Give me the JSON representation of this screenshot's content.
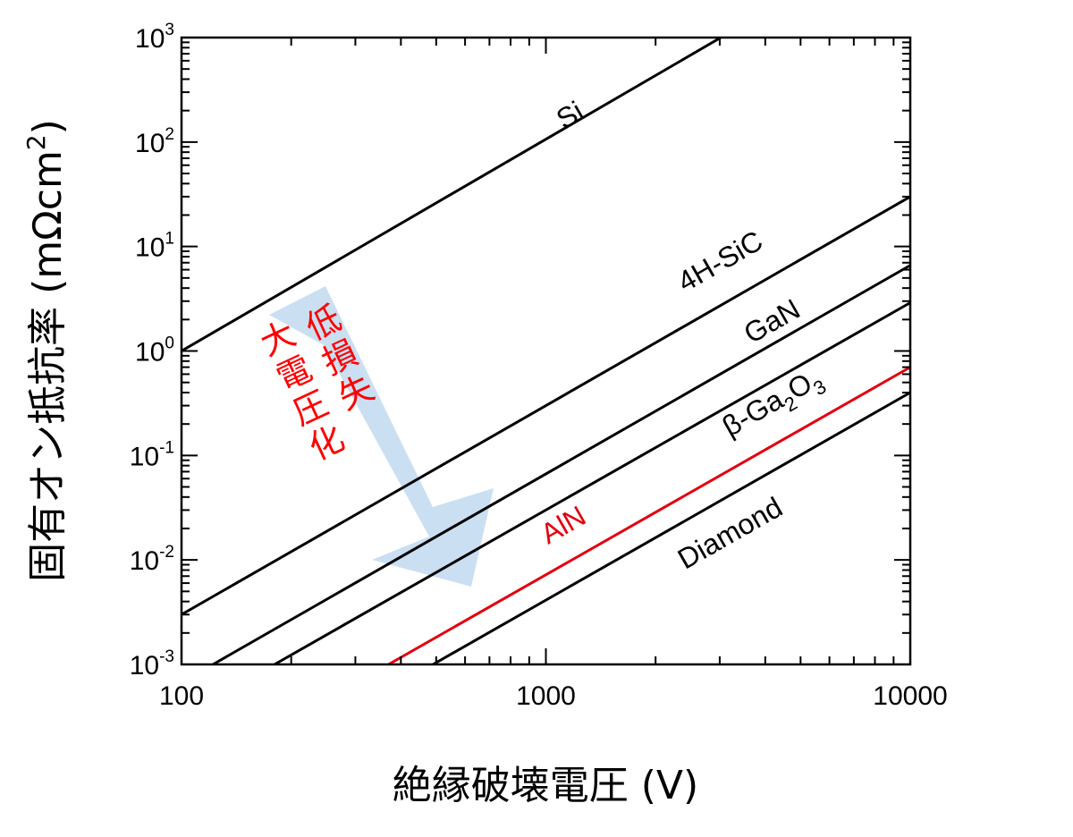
{
  "chart_data": {
    "type": "line",
    "title": "",
    "xlabel": "絶縁破壊電圧 (V)",
    "ylabel_main": "固有オン抵抗率 (mΩcm",
    "ylabel_sup": "2",
    "ylabel_close": ")",
    "xscale": "log",
    "yscale": "log",
    "xlim": [
      100,
      10000
    ],
    "ylim": [
      0.001,
      1000
    ],
    "grid": false,
    "x_ticks": [
      {
        "value": 100,
        "label": "100"
      },
      {
        "value": 1000,
        "label": "1000"
      },
      {
        "value": 10000,
        "label": "10000"
      }
    ],
    "y_ticks": [
      {
        "value": 0.001,
        "base": "10",
        "exp": "-3"
      },
      {
        "value": 0.01,
        "base": "10",
        "exp": "-2"
      },
      {
        "value": 0.1,
        "base": "10",
        "exp": "-1"
      },
      {
        "value": 1,
        "base": "10",
        "exp": "0"
      },
      {
        "value": 10,
        "base": "10",
        "exp": "1"
      },
      {
        "value": 100,
        "base": "10",
        "exp": "2"
      },
      {
        "value": 1000,
        "base": "10",
        "exp": "3"
      }
    ],
    "series": [
      {
        "name": "Si",
        "label_parts": [
          {
            "t": "Si"
          }
        ],
        "color": "#000000",
        "x": [
          100,
          3020
        ],
        "y": [
          1.0,
          1000
        ],
        "label_at": {
          "x": 1200,
          "y": 150
        }
      },
      {
        "name": "4H-SiC",
        "label_parts": [
          {
            "t": "4H-SiC"
          }
        ],
        "color": "#000000",
        "x": [
          100,
          10000
        ],
        "y": [
          0.003,
          30
        ],
        "label_at": {
          "x": 3100,
          "y": 6
        }
      },
      {
        "name": "GaN",
        "label_parts": [
          {
            "t": "GaN"
          }
        ],
        "color": "#000000",
        "x": [
          122,
          10000
        ],
        "y": [
          0.001,
          6.6
        ],
        "label_at": {
          "x": 4300,
          "y": 1.6
        }
      },
      {
        "name": "β-Ga2O3",
        "label_parts": [
          {
            "t": "β-Ga"
          },
          {
            "t": "2",
            "sub": true
          },
          {
            "t": "O"
          },
          {
            "t": "3",
            "sub": true
          }
        ],
        "color": "#000000",
        "x": [
          180,
          10000
        ],
        "y": [
          0.001,
          2.9
        ],
        "label_at": {
          "x": 4300,
          "y": 0.27
        }
      },
      {
        "name": "AlN",
        "label_parts": [
          {
            "t": "AlN"
          }
        ],
        "color": "#e3000f",
        "x": [
          370,
          10000
        ],
        "y": [
          0.001,
          0.7
        ],
        "label_at": {
          "x": 1150,
          "y": 0.018
        }
      },
      {
        "name": "Diamond",
        "label_parts": [
          {
            "t": "Diamond"
          }
        ],
        "color": "#000000",
        "x": [
          490,
          10000
        ],
        "y": [
          0.001,
          0.4
        ],
        "label_at": {
          "x": 3300,
          "y": 0.015
        }
      }
    ],
    "annotations": [
      {
        "text": "低損失",
        "color": "#ff0000"
      },
      {
        "text": "大電圧化",
        "color": "#ff0000"
      }
    ],
    "arrow_color": "#bcd6ee"
  }
}
